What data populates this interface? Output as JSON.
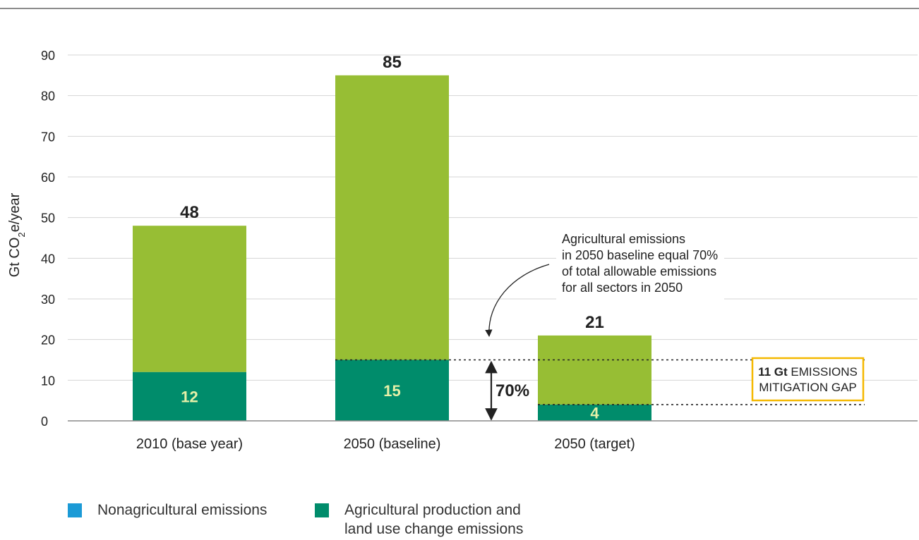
{
  "colors": {
    "nonagricultural": "#1b9ad6",
    "agricultural": "#008c6b",
    "bar_total": "#97be34",
    "gap_box": "#f5b800",
    "text": "#222222",
    "axis": "#888888",
    "grid": "#d4d4d4"
  },
  "chart_data": {
    "type": "bar",
    "ylabel_main": "Gt CO",
    "ylabel_sub": "2",
    "ylabel_tail": "e/year",
    "xlabel": "",
    "ylim": [
      0,
      90
    ],
    "yticks": [
      0,
      10,
      20,
      30,
      40,
      50,
      60,
      70,
      80,
      90
    ],
    "grid": true,
    "categories": [
      "2010 (base year)",
      "2050 (baseline)",
      "2050 (target)"
    ],
    "totals": [
      48,
      85,
      21
    ],
    "total_labels": [
      "48",
      "85",
      "21"
    ],
    "agricultural": [
      12,
      15,
      4
    ],
    "agricultural_labels": [
      "12",
      "15",
      "4"
    ],
    "legend_position": "bottom-left",
    "annotation": {
      "lines": [
        "Agricultural emissions",
        "in 2050 baseline equal 70%",
        "of total allowable emissions",
        "for all sectors in 2050"
      ]
    },
    "bracket_label": "70%",
    "gap_box": {
      "bold": "11 Gt",
      "line1_rest": " EMISSIONS",
      "line2": "MITIGATION GAP"
    }
  },
  "legend": {
    "items": [
      {
        "label_lines": [
          "Nonagricultural emissions"
        ],
        "color_key": "nonagricultural"
      },
      {
        "label_lines": [
          "Agricultural production and",
          "land use change emissions"
        ],
        "color_key": "agricultural"
      }
    ]
  }
}
